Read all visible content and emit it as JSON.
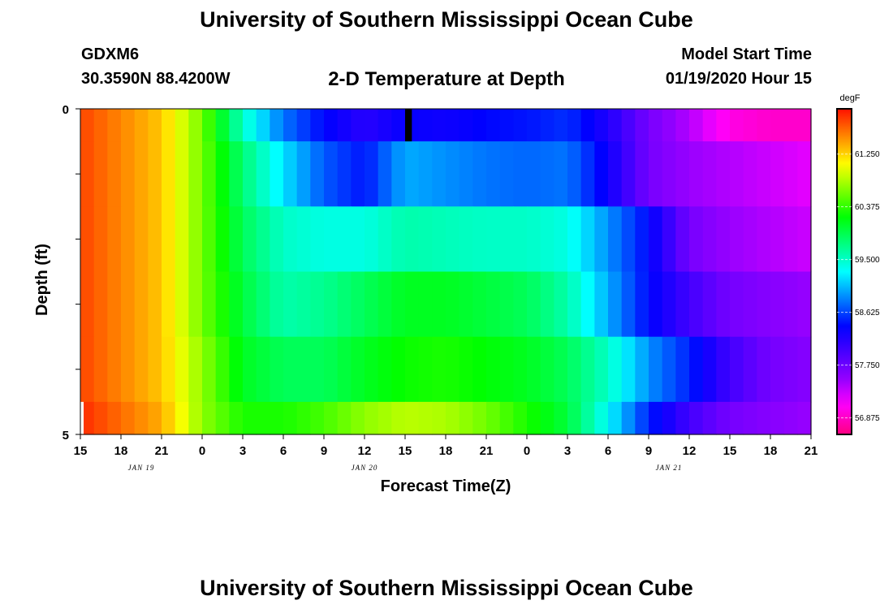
{
  "header": {
    "title": "University of Southern Mississippi Ocean Cube",
    "station_id": "GDXM6",
    "station_location": "30.3590N 88.4200W",
    "plot_title": "2-D Temperature at Depth",
    "start_label": "Model Start Time",
    "start_value": "01/19/2020 Hour 15"
  },
  "footer": {
    "title": "University of Southern Mississippi Ocean Cube"
  },
  "chart_data": {
    "type": "heatmap",
    "title": "2-D Temperature at Depth",
    "xlabel": "Forecast Time(Z)",
    "ylabel": "Depth (ft)",
    "x_tick_labels": [
      "15",
      "18",
      "21",
      "0",
      "3",
      "6",
      "9",
      "12",
      "15",
      "18",
      "21",
      "0",
      "3",
      "6",
      "9",
      "12",
      "15",
      "18",
      "21"
    ],
    "x_date_labels": [
      {
        "label": "JAN 19",
        "hours": 4.5
      },
      {
        "label": "JAN 20",
        "hours": 21
      },
      {
        "label": "JAN 21",
        "hours": 43.5
      }
    ],
    "x_range_hours": [
      0,
      54
    ],
    "y_tick_labels": [
      {
        "label": "0",
        "depth": 0
      },
      {
        "label": "5",
        "depth": 5
      }
    ],
    "y_range_ft": [
      0,
      5
    ],
    "depth_bands_ft": [
      [
        0,
        0.5
      ],
      [
        0.5,
        1.5
      ],
      [
        1.5,
        2.5
      ],
      [
        2.5,
        3.5
      ],
      [
        3.5,
        4.5
      ],
      [
        4.5,
        5
      ]
    ],
    "colorbar": {
      "unit": "degF",
      "min": 56.6,
      "max": 62.0,
      "tick_labels": [
        "61.250",
        "60.375",
        "59.500",
        "58.625",
        "57.750",
        "56.875"
      ],
      "tick_values": [
        61.25,
        60.375,
        59.5,
        58.625,
        57.75,
        56.875
      ]
    },
    "keyframe_hours": [
      0,
      6,
      9,
      12,
      15,
      18,
      21,
      24,
      27,
      30,
      33,
      36,
      39,
      42,
      45,
      48,
      51,
      54
    ],
    "temperature_degF": [
      [
        61.8,
        61.3,
        60.6,
        59.5,
        58.8,
        58.4,
        58.15,
        58.35,
        58.3,
        58.4,
        58.45,
        58.55,
        58.2,
        57.7,
        57.4,
        57.0,
        56.9,
        56.9
      ],
      [
        61.8,
        61.3,
        60.6,
        59.8,
        59.2,
        58.7,
        58.45,
        59.0,
        58.9,
        58.8,
        58.75,
        58.8,
        58.3,
        57.7,
        57.5,
        57.4,
        57.3,
        57.2
      ],
      [
        61.8,
        61.3,
        60.6,
        59.9,
        59.5,
        59.4,
        59.4,
        59.6,
        59.55,
        59.5,
        59.5,
        59.4,
        58.9,
        58.4,
        57.7,
        57.5,
        57.4,
        57.3
      ],
      [
        61.8,
        61.3,
        60.6,
        60.0,
        59.6,
        59.7,
        59.9,
        60.1,
        60.1,
        60.0,
        59.9,
        59.6,
        59.0,
        58.4,
        58.0,
        57.7,
        57.6,
        57.5
      ],
      [
        61.8,
        61.3,
        60.7,
        60.1,
        59.9,
        59.9,
        60.1,
        60.25,
        60.3,
        60.2,
        60.1,
        59.9,
        59.5,
        58.9,
        58.5,
        58.0,
        57.7,
        57.6
      ],
      [
        61.9,
        61.4,
        60.7,
        60.3,
        60.3,
        60.45,
        60.7,
        60.85,
        60.8,
        60.6,
        60.3,
        60.0,
        59.3,
        58.5,
        58.0,
        57.7,
        57.6,
        57.5
      ]
    ],
    "missing_cells": [
      {
        "hours": [
          24.0,
          24.5
        ],
        "band": 0
      },
      {
        "hours": [
          0,
          0.1
        ],
        "band": 5
      }
    ]
  }
}
